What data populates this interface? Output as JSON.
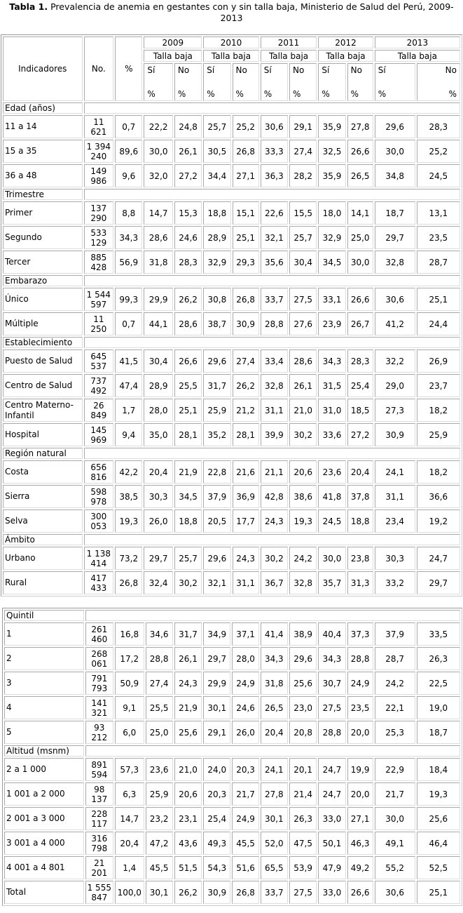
{
  "title": {
    "bold": "Tabla 1.",
    "text": " Prevalencia de anemia en gestantes con y sin talla baja, Ministerio de Salud del Perú, 2009-2013"
  },
  "header": {
    "indicadores": "Indicadores",
    "no": "No.",
    "pct": "%",
    "years": [
      "2009",
      "2010",
      "2011",
      "2012",
      "2013"
    ],
    "talla_baja": "Talla baja",
    "si": "Sí",
    "no_label": "No",
    "pct_unit": "%"
  },
  "table1": [
    {
      "label": "Edad (años)",
      "rows": [
        {
          "label": "11 a 14",
          "n": [
            "11",
            "621"
          ],
          "pct": "0,7",
          "values": [
            "22,2",
            "24,8",
            "25,7",
            "25,2",
            "30,6",
            "29,1",
            "35,9",
            "27,8",
            "29,6",
            "28,3"
          ]
        },
        {
          "label": "15 a 35",
          "n": [
            "1 394",
            "240"
          ],
          "pct": "89,6",
          "values": [
            "30,0",
            "26,1",
            "30,5",
            "26,8",
            "33,3",
            "27,4",
            "32,5",
            "26,6",
            "30,0",
            "25,2"
          ]
        },
        {
          "label": "36 a 48",
          "n": [
            "149",
            "986"
          ],
          "pct": "9,6",
          "values": [
            "32,0",
            "27,2",
            "34,4",
            "27,1",
            "36,3",
            "28,2",
            "35,9",
            "26,5",
            "34,8",
            "24,5"
          ]
        }
      ]
    },
    {
      "label": "Trimestre",
      "rows": [
        {
          "label": "Primer",
          "n": [
            "137",
            "290"
          ],
          "pct": "8,8",
          "values": [
            "14,7",
            "15,3",
            "18,8",
            "15,1",
            "22,6",
            "15,5",
            "18,0",
            "14,1",
            "18,7",
            "13,1"
          ]
        },
        {
          "label": "Segundo",
          "n": [
            "533",
            "129"
          ],
          "pct": "34,3",
          "values": [
            "28,6",
            "24,6",
            "28,9",
            "25,1",
            "32,1",
            "25,7",
            "32,9",
            "25,0",
            "29,7",
            "23,5"
          ]
        },
        {
          "label": "Tercer",
          "n": [
            "885",
            "428"
          ],
          "pct": "56,9",
          "values": [
            "31,8",
            "28,3",
            "32,9",
            "29,3",
            "35,6",
            "30,4",
            "34,5",
            "30,0",
            "32,8",
            "28,7"
          ]
        }
      ]
    },
    {
      "label": "Embarazo",
      "rows": [
        {
          "label": "Único",
          "n": [
            "1 544",
            "597"
          ],
          "pct": "99,3",
          "values": [
            "29,9",
            "26,2",
            "30,8",
            "26,8",
            "33,7",
            "27,5",
            "33,1",
            "26,6",
            "30,6",
            "25,1"
          ]
        },
        {
          "label": "Múltiple",
          "n": [
            "11",
            "250"
          ],
          "pct": "0,7",
          "values": [
            "44,1",
            "28,6",
            "38,7",
            "30,9",
            "28,8",
            "27,6",
            "23,9",
            "26,7",
            "41,2",
            "24,4"
          ]
        }
      ]
    },
    {
      "label": "Establecimiento",
      "rows": [
        {
          "label": "Puesto de Salud",
          "n": [
            "645",
            "537"
          ],
          "pct": "41,5",
          "values": [
            "30,4",
            "26,6",
            "29,6",
            "27,4",
            "33,4",
            "28,6",
            "34,3",
            "28,3",
            "32,2",
            "26,9"
          ]
        },
        {
          "label": "Centro de Salud",
          "n": [
            "737",
            "492"
          ],
          "pct": "47,4",
          "values": [
            "28,9",
            "25,5",
            "31,7",
            "26,2",
            "32,8",
            "26,1",
            "31,5",
            "25,4",
            "29,0",
            "23,7"
          ]
        },
        {
          "label": "Centro Materno-Infantil",
          "n": [
            "26",
            "849"
          ],
          "pct": "1,7",
          "values": [
            "28,0",
            "25,1",
            "25,9",
            "21,2",
            "31,1",
            "21,0",
            "31,0",
            "18,5",
            "27,3",
            "18,2"
          ]
        },
        {
          "label": "Hospital",
          "n": [
            "145",
            "969"
          ],
          "pct": "9,4",
          "values": [
            "35,0",
            "28,1",
            "35,2",
            "28,1",
            "39,9",
            "30,2",
            "33,6",
            "27,2",
            "30,9",
            "25,9"
          ]
        }
      ]
    },
    {
      "label": "Región natural",
      "rows": [
        {
          "label": "Costa",
          "n": [
            "656",
            "816"
          ],
          "pct": "42,2",
          "values": [
            "20,4",
            "21,9",
            "22,8",
            "21,6",
            "21,1",
            "20,6",
            "23,6",
            "20,4",
            "24,1",
            "18,2"
          ]
        },
        {
          "label": "Sierra",
          "n": [
            "598",
            "978"
          ],
          "pct": "38,5",
          "values": [
            "30,3",
            "34,5",
            "37,9",
            "36,9",
            "42,8",
            "38,6",
            "41,8",
            "37,8",
            "31,1",
            "36,6"
          ]
        },
        {
          "label": "Selva",
          "n": [
            "300",
            "053"
          ],
          "pct": "19,3",
          "values": [
            "26,0",
            "18,8",
            "20,5",
            "17,7",
            "24,3",
            "19,3",
            "24,5",
            "18,8",
            "23,4",
            "19,2"
          ]
        }
      ]
    },
    {
      "label": "Ámbito",
      "rows": [
        {
          "label": "Urbano",
          "n": [
            "1 138",
            "414"
          ],
          "pct": "73,2",
          "values": [
            "29,7",
            "25,7",
            "29,6",
            "24,3",
            "30,2",
            "24,2",
            "30,0",
            "23,8",
            "30,3",
            "24,7"
          ]
        },
        {
          "label": "Rural",
          "n": [
            "417",
            "433"
          ],
          "pct": "26,8",
          "values": [
            "32,4",
            "30,2",
            "32,1",
            "31,1",
            "36,7",
            "32,8",
            "35,7",
            "31,3",
            "33,2",
            "29,7"
          ]
        }
      ]
    }
  ],
  "table2": [
    {
      "label": "Quintil",
      "rows": [
        {
          "label": "1",
          "n": [
            "261",
            "460"
          ],
          "pct": "16,8",
          "values": [
            "34,6",
            "31,7",
            "34,9",
            "37,1",
            "41,4",
            "38,9",
            "40,4",
            "37,3",
            "37,9",
            "33,5"
          ]
        },
        {
          "label": "2",
          "n": [
            "268",
            "061"
          ],
          "pct": "17,2",
          "values": [
            "28,8",
            "26,1",
            "29,7",
            "28,0",
            "34,3",
            "29,6",
            "34,3",
            "28,8",
            "28,7",
            "26,3"
          ]
        },
        {
          "label": "3",
          "n": [
            "791",
            "793"
          ],
          "pct": "50,9",
          "values": [
            "27,4",
            "24,3",
            "29,9",
            "24,9",
            "31,8",
            "25,6",
            "30,7",
            "24,9",
            "24,2",
            "22,5"
          ]
        },
        {
          "label": "4",
          "n": [
            "141",
            "321"
          ],
          "pct": "9,1",
          "values": [
            "25,5",
            "21,9",
            "30,1",
            "24,6",
            "26,5",
            "23,0",
            "27,5",
            "23,5",
            "22,1",
            "19,0"
          ]
        },
        {
          "label": "5",
          "n": [
            "93",
            "212"
          ],
          "pct": "6,0",
          "values": [
            "25,0",
            "25,6",
            "29,1",
            "26,0",
            "20,4",
            "20,8",
            "28,8",
            "20,0",
            "25,3",
            "18,7"
          ]
        }
      ]
    },
    {
      "label": "Altitud (msnm)",
      "rows": [
        {
          "label": "2 a 1 000",
          "n": [
            "891",
            "594"
          ],
          "pct": "57,3",
          "values": [
            "23,6",
            "21,0",
            "24,0",
            "20,3",
            "24,1",
            "20,1",
            "24,7",
            "19,9",
            "22,9",
            "18,4"
          ]
        },
        {
          "label": "1 001 a 2 000",
          "n": [
            "98",
            "137"
          ],
          "pct": "6,3",
          "values": [
            "25,9",
            "20,6",
            "20,3",
            "21,7",
            "27,8",
            "21,4",
            "24,7",
            "20,0",
            "21,7",
            "19,3"
          ]
        },
        {
          "label": "2 001 a 3 000",
          "n": [
            "228",
            "117"
          ],
          "pct": "14,7",
          "values": [
            "23,2",
            "23,1",
            "25,4",
            "24,9",
            "30,1",
            "26,3",
            "33,0",
            "27,1",
            "30,0",
            "25,6"
          ]
        },
        {
          "label": "3 001 a 4 000",
          "n": [
            "316",
            "798"
          ],
          "pct": "20,4",
          "values": [
            "47,2",
            "43,6",
            "49,3",
            "45,5",
            "52,0",
            "47,5",
            "50,1",
            "46,3",
            "49,1",
            "46,4"
          ]
        },
        {
          "label": "4 001 a 4 801",
          "n": [
            "21",
            "201"
          ],
          "pct": "1,4",
          "values": [
            "45,5",
            "51,5",
            "54,3",
            "51,6",
            "65,5",
            "53,9",
            "47,9",
            "49,2",
            "55,2",
            "52,5"
          ]
        }
      ]
    },
    {
      "label": null,
      "rows": [
        {
          "label": "Total",
          "n": [
            "1 555",
            "847"
          ],
          "pct": "100,0",
          "values": [
            "30,1",
            "26,2",
            "30,9",
            "26,8",
            "33,7",
            "27,5",
            "33,0",
            "26,6",
            "30,6",
            "25,1"
          ]
        }
      ]
    }
  ]
}
